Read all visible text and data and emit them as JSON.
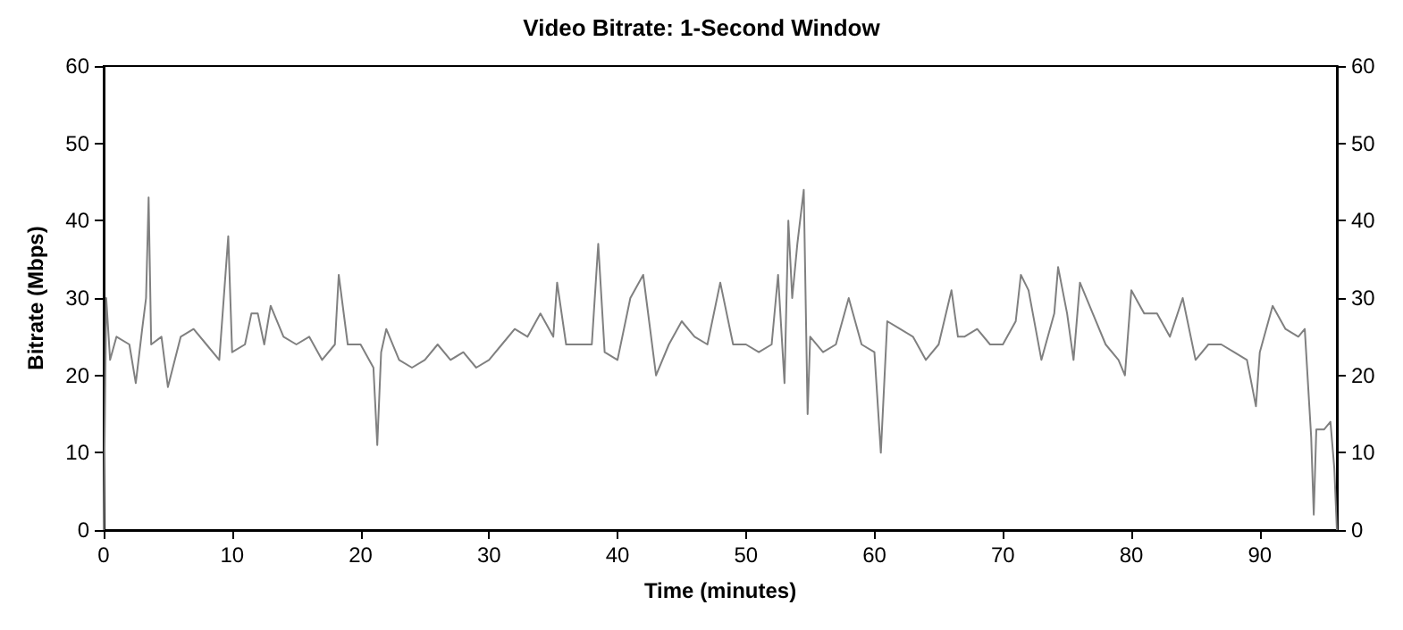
{
  "chart_data": {
    "type": "line",
    "title": "Video Bitrate: 1-Second Window",
    "xlabel": "Time (minutes)",
    "ylabel": "Bitrate (Mbps)",
    "xlim": [
      0,
      96
    ],
    "xticks": [
      0,
      10,
      20,
      30,
      40,
      50,
      60,
      70,
      80,
      90
    ],
    "ylim": [
      0,
      60
    ],
    "yticks": [
      0,
      10,
      20,
      30,
      40,
      50,
      60
    ],
    "y2lim": [
      0,
      60
    ],
    "y2ticks": [
      0,
      10,
      20,
      30,
      40,
      50,
      60
    ],
    "grid": false,
    "marker": "none",
    "line_style": "solid",
    "series": [
      {
        "color": "#808080",
        "x": [
          0,
          0.2,
          0.5,
          1,
          2,
          2.5,
          3,
          3.3,
          3.5,
          3.7,
          4.5,
          5,
          6,
          7,
          8,
          9,
          9.7,
          10,
          11,
          11.5,
          12,
          12.5,
          13,
          14,
          15,
          16,
          17,
          18,
          18.3,
          19,
          20,
          21,
          21.3,
          21.6,
          22,
          23,
          24,
          25,
          26,
          27,
          28,
          29,
          30,
          31,
          32,
          33,
          34,
          35,
          35.3,
          36,
          37,
          38,
          38.5,
          39,
          40,
          41,
          42,
          43,
          44,
          45,
          46,
          47,
          48,
          49,
          50,
          51,
          52,
          52.5,
          53,
          53.3,
          53.6,
          54,
          54.5,
          54.8,
          55,
          56,
          57,
          58,
          59,
          60,
          60.5,
          61,
          62,
          63,
          64,
          65,
          66,
          66.5,
          67,
          68,
          69,
          70,
          71,
          71.4,
          72,
          73,
          74,
          74.3,
          75,
          75.5,
          76,
          77,
          78,
          79,
          79.5,
          80,
          81,
          82,
          83,
          84,
          85,
          86,
          87,
          88,
          89,
          89.7,
          90,
          91,
          92,
          93,
          93.5,
          94,
          94.2,
          94.4,
          95,
          95.5,
          95.8,
          96
        ],
        "values": [
          0,
          30,
          22,
          25,
          24,
          19,
          26,
          30,
          43,
          24,
          25,
          18.5,
          25,
          26,
          24,
          22,
          38,
          23,
          24,
          28,
          28,
          24,
          29,
          25,
          24,
          25,
          22,
          24,
          33,
          24,
          24,
          21,
          11,
          23,
          26,
          22,
          21,
          22,
          24,
          22,
          23,
          21,
          22,
          24,
          26,
          25,
          28,
          25,
          32,
          24,
          24,
          24,
          37,
          23,
          22,
          30,
          33,
          20,
          24,
          27,
          25,
          24,
          32,
          24,
          24,
          23,
          24,
          33,
          19,
          40,
          30,
          37,
          44,
          15,
          25,
          23,
          24,
          30,
          24,
          23,
          10,
          27,
          26,
          25,
          22,
          24,
          31,
          25,
          25,
          26,
          24,
          24,
          27,
          33,
          31,
          22,
          28,
          34,
          28,
          22,
          32,
          28,
          24,
          22,
          20,
          31,
          28,
          28,
          25,
          30,
          22,
          24,
          24,
          23,
          22,
          16,
          23,
          29,
          26,
          25,
          26,
          12,
          2,
          13,
          13,
          14,
          8,
          0
        ]
      }
    ]
  }
}
